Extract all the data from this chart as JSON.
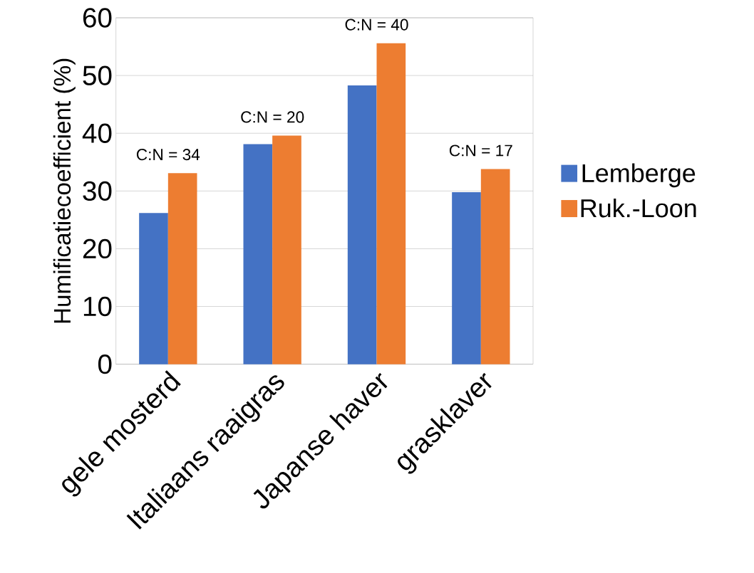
{
  "chart_data": {
    "type": "bar",
    "ylabel": "Humificatiecoefficient (%)",
    "categories": [
      "gele mosterd",
      "Italiaans raaigras",
      "Japanse haver",
      "grasklaver"
    ],
    "series": [
      {
        "name": "Lemberge",
        "color": "#4472c4",
        "values": [
          26.2,
          38.1,
          48.3,
          29.8
        ]
      },
      {
        "name": "Ruk.-Loon",
        "color": "#ed7d31",
        "values": [
          33.1,
          39.6,
          55.6,
          33.8
        ]
      }
    ],
    "annotations": [
      "C:N = 34",
      "C:N = 20",
      "C:N = 40",
      "C:N = 17"
    ],
    "ylim": [
      0,
      60
    ],
    "yticks": [
      0,
      10,
      20,
      30,
      40,
      50,
      60
    ],
    "grid": "y",
    "legend": "right"
  }
}
